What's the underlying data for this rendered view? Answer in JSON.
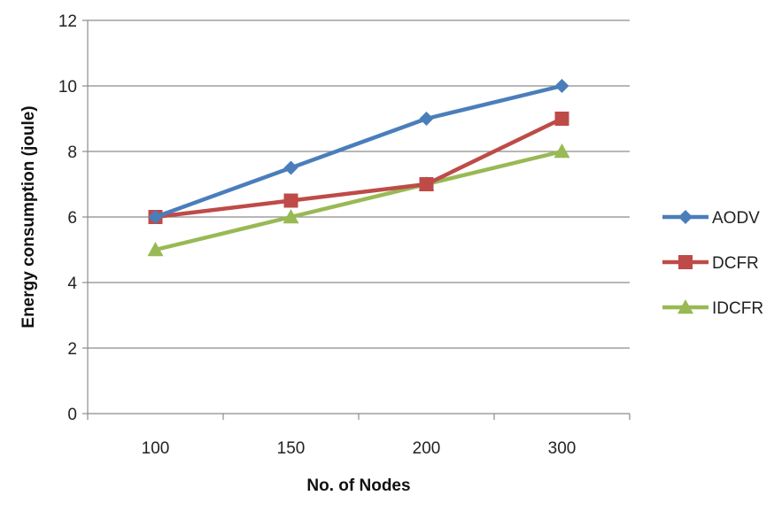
{
  "chart_data": {
    "type": "line",
    "title": "",
    "xlabel": "No. of Nodes",
    "ylabel": "Energy consumption (joule)",
    "categories": [
      "100",
      "150",
      "200",
      "300"
    ],
    "ylim": [
      0,
      12
    ],
    "yticks": [
      "0",
      "2",
      "4",
      "6",
      "8",
      "10",
      "12"
    ],
    "grid": true,
    "legend": "right",
    "series": [
      {
        "name": "AODV",
        "values": [
          6,
          7.5,
          9,
          10
        ],
        "color": "#4a7ebb",
        "marker": "diamond"
      },
      {
        "name": "DCFR",
        "values": [
          6,
          6.5,
          7,
          9
        ],
        "color": "#be4b48",
        "marker": "square"
      },
      {
        "name": "IDCFR",
        "values": [
          5,
          6,
          7,
          8
        ],
        "color": "#98b954",
        "marker": "triangle"
      }
    ]
  }
}
